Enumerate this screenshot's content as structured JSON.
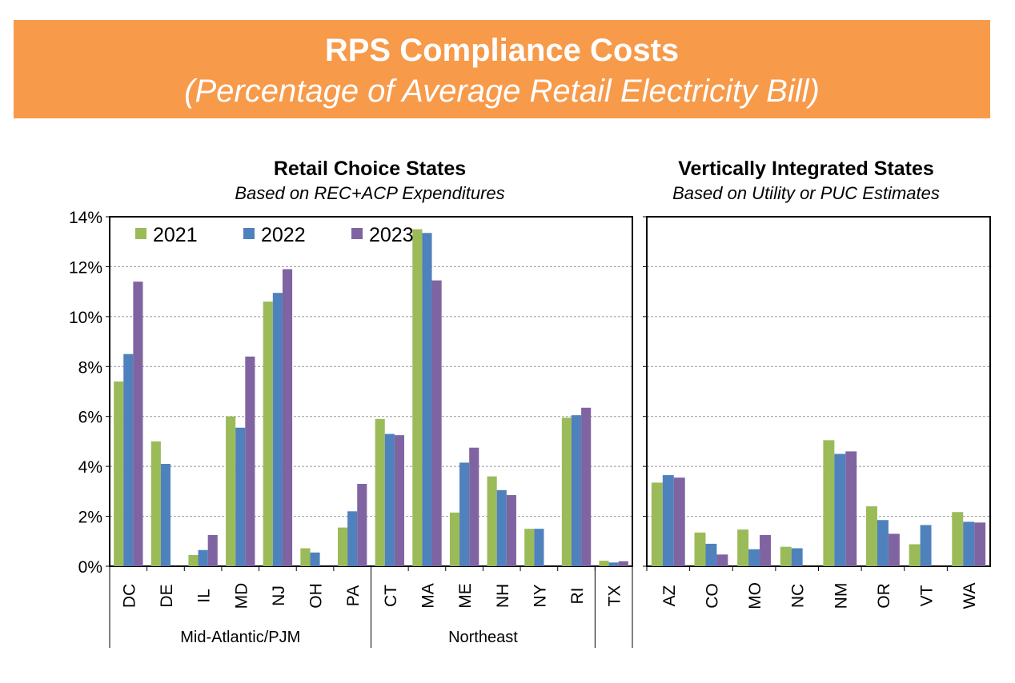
{
  "header": {
    "title": "RPS Compliance Costs",
    "subtitle": "(Percentage of Average Retail Electricity Bill)"
  },
  "chart_data": [
    {
      "type": "bar",
      "title": "Retail Choice States",
      "subtitle": "Based on REC+ACP Expenditures",
      "ylim": [
        0,
        14
      ],
      "yticks": [
        "0%",
        "2%",
        "4%",
        "6%",
        "8%",
        "10%",
        "12%",
        "14%"
      ],
      "legend": [
        "2021",
        "2022",
        "2023"
      ],
      "legend_position": "top-left",
      "colors": [
        "#9bbb59",
        "#4f81bd",
        "#8064a2"
      ],
      "categories": [
        "DC",
        "DE",
        "IL",
        "MD",
        "NJ",
        "OH",
        "PA",
        "CT",
        "MA",
        "ME",
        "NH",
        "NY",
        "RI",
        "TX"
      ],
      "groups": [
        {
          "name": "Mid-Atlantic/PJM",
          "count": 7
        },
        {
          "name": "Northeast",
          "count": 6
        },
        {
          "name": "",
          "count": 1
        }
      ],
      "series": [
        {
          "name": "2021",
          "values": [
            7.4,
            5.0,
            0.45,
            6.0,
            10.6,
            0.72,
            1.55,
            5.9,
            13.5,
            2.15,
            3.6,
            1.5,
            5.95,
            0.22
          ]
        },
        {
          "name": "2022",
          "values": [
            8.5,
            4.1,
            0.65,
            5.55,
            10.95,
            0.55,
            2.2,
            5.3,
            13.35,
            4.15,
            3.05,
            1.5,
            6.05,
            0.15
          ]
        },
        {
          "name": "2023",
          "values": [
            11.4,
            null,
            1.25,
            8.4,
            11.9,
            null,
            3.3,
            5.25,
            11.45,
            4.75,
            2.85,
            null,
            6.35,
            0.2
          ]
        }
      ]
    },
    {
      "type": "bar",
      "title": "Vertically Integrated States",
      "subtitle": "Based on Utility or PUC Estimates",
      "ylim": [
        0,
        14
      ],
      "categories": [
        "AZ",
        "CO",
        "MO",
        "NC",
        "NM",
        "OR",
        "VT",
        "WA"
      ],
      "series": [
        {
          "name": "2021",
          "values": [
            3.35,
            1.35,
            1.47,
            0.78,
            5.05,
            2.4,
            0.88,
            2.17
          ]
        },
        {
          "name": "2022",
          "values": [
            3.65,
            0.9,
            0.68,
            0.72,
            4.5,
            1.85,
            1.65,
            1.78
          ]
        },
        {
          "name": "2023",
          "values": [
            3.55,
            0.47,
            1.25,
            null,
            4.6,
            1.3,
            null,
            1.75
          ]
        }
      ]
    }
  ]
}
